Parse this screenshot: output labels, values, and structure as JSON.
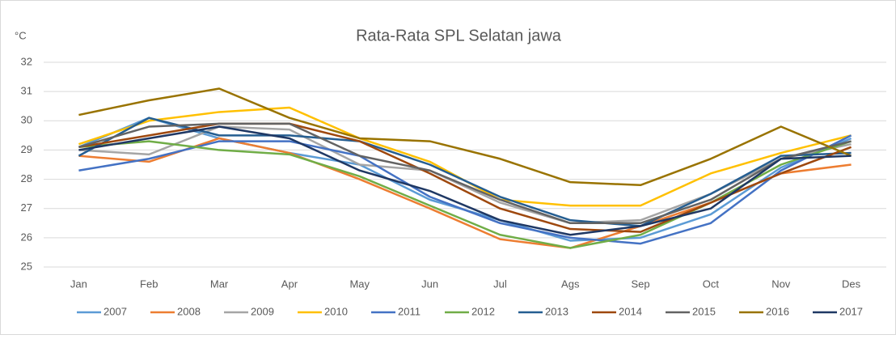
{
  "chart_data": {
    "type": "line",
    "title": "Rata-Rata SPL Selatan jawa",
    "y_label": "°C",
    "categories": [
      "Jan",
      "Feb",
      "Mar",
      "Apr",
      "May",
      "Jun",
      "Jul",
      "Ags",
      "Sep",
      "Oct",
      "Nov",
      "Des"
    ],
    "ylim": [
      25,
      32
    ],
    "yticks": [
      25,
      26,
      27,
      28,
      29,
      30,
      31,
      32
    ],
    "grid": true,
    "legend": "bottom",
    "series": [
      {
        "name": "2007",
        "color": "#5b9bd5",
        "values": [
          29.1,
          30.1,
          29.4,
          28.9,
          28.5,
          27.3,
          26.6,
          25.9,
          26.0,
          26.8,
          28.4,
          29.4
        ]
      },
      {
        "name": "2008",
        "color": "#ed7d31",
        "values": [
          28.8,
          28.6,
          29.4,
          28.9,
          28.0,
          27.0,
          25.95,
          25.65,
          26.4,
          27.2,
          28.2,
          28.5
        ]
      },
      {
        "name": "2009",
        "color": "#a5a5a5",
        "values": [
          29.0,
          28.85,
          29.8,
          29.7,
          28.5,
          28.3,
          27.2,
          26.5,
          26.6,
          27.5,
          28.7,
          29.2
        ]
      },
      {
        "name": "2010",
        "color": "#ffc000",
        "values": [
          29.2,
          30.0,
          30.3,
          30.45,
          29.4,
          28.6,
          27.3,
          27.1,
          27.1,
          28.2,
          28.9,
          29.5
        ]
      },
      {
        "name": "2011",
        "color": "#4472c4",
        "values": [
          28.3,
          28.7,
          29.3,
          29.3,
          28.8,
          27.4,
          26.5,
          26.0,
          25.8,
          26.5,
          28.3,
          29.5
        ]
      },
      {
        "name": "2012",
        "color": "#70ad47",
        "values": [
          29.1,
          29.3,
          29.0,
          28.85,
          28.1,
          27.1,
          26.1,
          25.65,
          26.1,
          27.2,
          28.5,
          29.3
        ]
      },
      {
        "name": "2013",
        "color": "#255e91",
        "values": [
          28.8,
          30.1,
          29.5,
          29.5,
          29.3,
          28.5,
          27.4,
          26.6,
          26.4,
          27.5,
          28.8,
          28.9
        ]
      },
      {
        "name": "2014",
        "color": "#9e480e",
        "values": [
          29.1,
          29.5,
          29.9,
          29.9,
          29.3,
          28.2,
          27.0,
          26.3,
          26.2,
          27.2,
          28.2,
          29.1
        ]
      },
      {
        "name": "2015",
        "color": "#636363",
        "values": [
          29.1,
          29.8,
          29.9,
          29.9,
          28.8,
          28.3,
          27.3,
          26.5,
          26.5,
          27.3,
          28.7,
          29.3
        ]
      },
      {
        "name": "2016",
        "color": "#997300",
        "values": [
          30.2,
          30.7,
          31.1,
          30.1,
          29.4,
          29.3,
          28.7,
          27.9,
          27.8,
          28.7,
          29.8,
          28.8
        ]
      },
      {
        "name": "2017",
        "color": "#1f3864",
        "values": [
          29.0,
          29.4,
          29.8,
          29.4,
          28.3,
          27.6,
          26.6,
          26.1,
          26.4,
          27.0,
          28.7,
          28.8
        ]
      }
    ]
  }
}
